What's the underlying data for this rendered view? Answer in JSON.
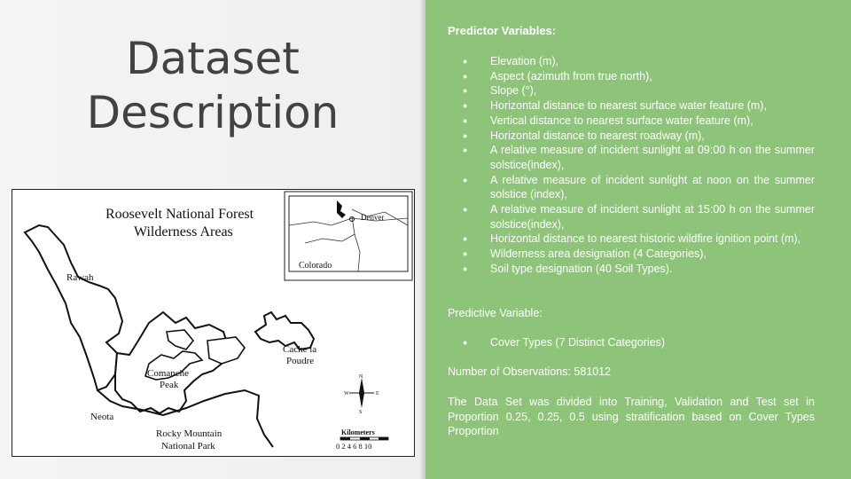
{
  "slide": {
    "title_lines": [
      "Dataset",
      "Description"
    ]
  },
  "map": {
    "title_lines": [
      "Roosevelt National Forest",
      "Wilderness Areas"
    ],
    "inset_state": "Colorado",
    "inset_city": "Denver",
    "areas": {
      "rawah": "Rawah",
      "comanche_lines": [
        "Comanche",
        "Peak"
      ],
      "cache_lines": [
        "Cache la",
        "Poudre"
      ],
      "neota": "Neota",
      "park_lines": [
        "Rocky Mountain",
        "National Park"
      ]
    },
    "compass": {
      "n": "N",
      "s": "S",
      "e": "E",
      "w": "W"
    },
    "scale_label": "Kilometers",
    "scale_ticks": "0 2 4 6 8 10"
  },
  "content": {
    "predictor_heading": "Predictor Variables:",
    "predictors": [
      "Elevation (m),",
      "Aspect (azimuth from true north),",
      "Slope (°),",
      "Horizontal distance to nearest surface water feature (m),",
      "Vertical distance to nearest surface water feature (m),",
      "Horizontal distance to nearest roadway (m),",
      "A relative measure of incident sunlight at 09:00 h on the summer solstice(index),",
      "A relative measure of incident sunlight at noon on the summer solstice (index),",
      "A relative measure of incident sunlight at 15:00 h on the summer solstice(index),",
      "Horizontal distance to nearest historic wildfire ignition point (m),",
      "Wilderness area designation (4 Categories),",
      "Soil type designation (40 Soil Types)."
    ],
    "predictive_heading": "Predictive Variable:",
    "predictive_items": [
      "Cover Types (7 Distinct Categories)"
    ],
    "observations": "Number of Observations: 581012",
    "split_note": "The Data Set was divided into Training, Validation and Test set in Proportion 0.25, 0.25, 0.5 using stratification based on Cover Types Proportion"
  }
}
